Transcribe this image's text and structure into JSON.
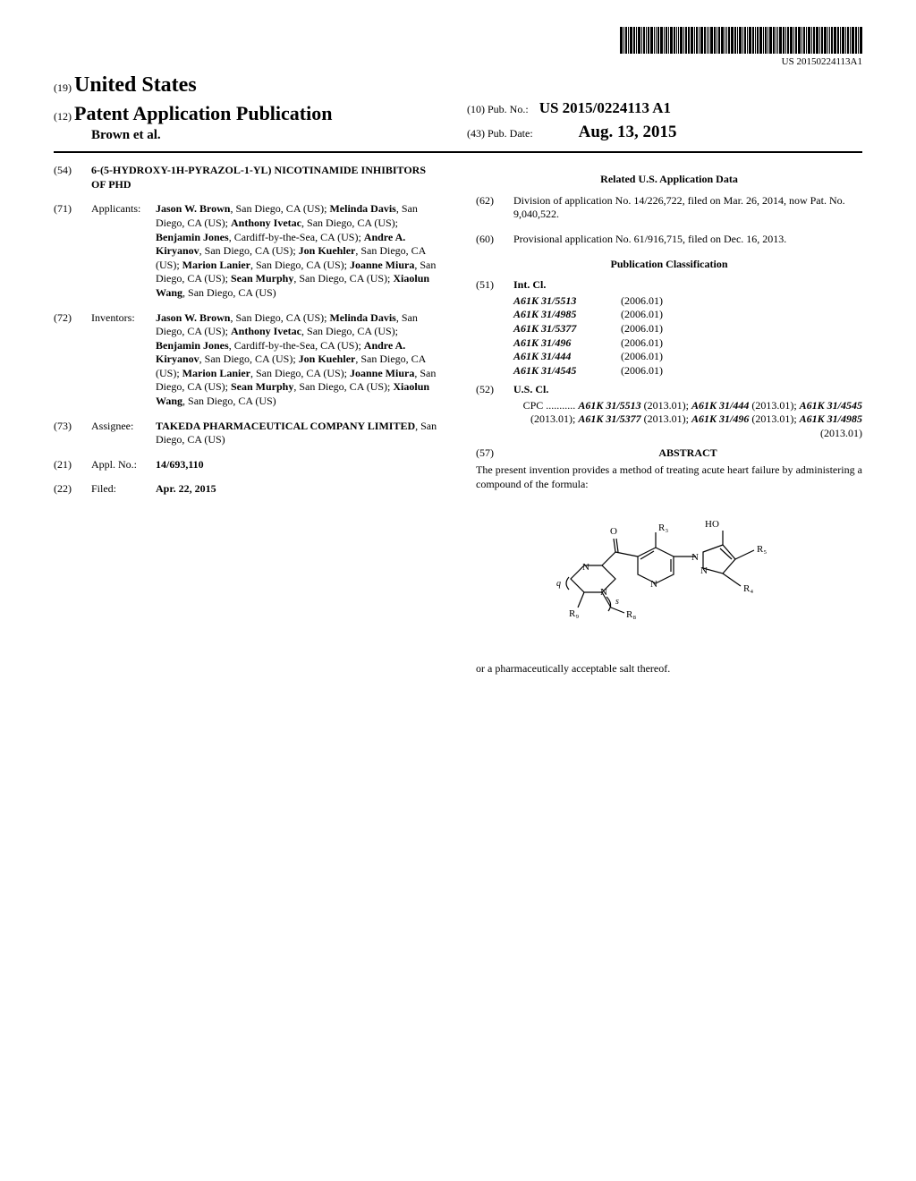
{
  "barcode_number": "US 20150224113A1",
  "header": {
    "country_code": "(19)",
    "country": "United States",
    "pub_code": "(12)",
    "pub_type": "Patent Application Publication",
    "authors_short": "Brown et al.",
    "pubno_code": "(10)",
    "pubno_label": "Pub. No.:",
    "pubno": "US 2015/0224113 A1",
    "pubdate_code": "(43)",
    "pubdate_label": "Pub. Date:",
    "pubdate": "Aug. 13, 2015"
  },
  "left": {
    "title_code": "(54)",
    "title": "6-(5-HYDROXY-1H-PYRAZOL-1-YL) NICOTINAMIDE INHIBITORS OF PHD",
    "applicants_code": "(71)",
    "applicants_label": "Applicants:",
    "applicants": "Jason W. Brown, San Diego, CA (US); Melinda Davis, San Diego, CA (US); Anthony Ivetac, San Diego, CA (US); Benjamin Jones, Cardiff-by-the-Sea, CA (US); Andre A. Kiryanov, San Diego, CA (US); Jon Kuehler, San Diego, CA (US); Marion Lanier, San Diego, CA (US); Joanne Miura, San Diego, CA (US); Sean Murphy, San Diego, CA (US); Xiaolun Wang, San Diego, CA (US)",
    "inventors_code": "(72)",
    "inventors_label": "Inventors:",
    "inventors": "Jason W. Brown, San Diego, CA (US); Melinda Davis, San Diego, CA (US); Anthony Ivetac, San Diego, CA (US); Benjamin Jones, Cardiff-by-the-Sea, CA (US); Andre A. Kiryanov, San Diego, CA (US); Jon Kuehler, San Diego, CA (US); Marion Lanier, San Diego, CA (US); Joanne Miura, San Diego, CA (US); Sean Murphy, San Diego, CA (US); Xiaolun Wang, San Diego, CA (US)",
    "assignee_code": "(73)",
    "assignee_label": "Assignee:",
    "assignee": "TAKEDA PHARMACEUTICAL COMPANY LIMITED, San Diego, CA (US)",
    "applno_code": "(21)",
    "applno_label": "Appl. No.:",
    "applno": "14/693,110",
    "filed_code": "(22)",
    "filed_label": "Filed:",
    "filed": "Apr. 22, 2015"
  },
  "right": {
    "related_heading": "Related U.S. Application Data",
    "div_code": "(62)",
    "div_text": "Division of application No. 14/226,722, filed on Mar. 26, 2014, now Pat. No. 9,040,522.",
    "prov_code": "(60)",
    "prov_text": "Provisional application No. 61/916,715, filed on Dec. 16, 2013.",
    "class_heading": "Publication Classification",
    "intcl_code": "(51)",
    "intcl_label": "Int. Cl.",
    "intcl": [
      {
        "code": "A61K 31/5513",
        "year": "(2006.01)"
      },
      {
        "code": "A61K 31/4985",
        "year": "(2006.01)"
      },
      {
        "code": "A61K 31/5377",
        "year": "(2006.01)"
      },
      {
        "code": "A61K 31/496",
        "year": "(2006.01)"
      },
      {
        "code": "A61K 31/444",
        "year": "(2006.01)"
      },
      {
        "code": "A61K 31/4545",
        "year": "(2006.01)"
      }
    ],
    "uscl_code": "(52)",
    "uscl_label": "U.S. Cl.",
    "cpc_lead": "CPC ...........",
    "cpc_text": "A61K 31/5513 (2013.01); A61K 31/444 (2013.01); A61K 31/4545 (2013.01); A61K 31/5377 (2013.01); A61K 31/496 (2013.01); A61K 31/4985 (2013.01)",
    "abstract_code": "(57)",
    "abstract_heading": "ABSTRACT",
    "abstract_body": "The present invention provides a method of treating acute heart failure by administering a compound of the formula:",
    "closing": "or a pharmaceutically acceptable salt thereof.",
    "formula_labels": {
      "r3": "R₃",
      "r4": "R₄",
      "r5": "R₅",
      "r8": "R₈",
      "r9": "R₉",
      "ho": "HO",
      "o": "O",
      "n": "N",
      "q": "q",
      "s": "s"
    }
  }
}
